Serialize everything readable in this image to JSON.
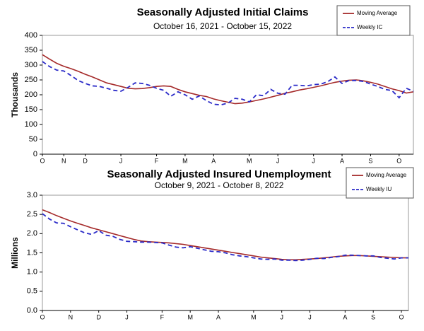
{
  "chart_data": [
    {
      "type": "line",
      "title": "Seasonally Adjusted Initial Claims",
      "subtitle": "October 16, 2021 - October 15, 2022",
      "y_label": "Thousands",
      "categories": [
        "O",
        null,
        null,
        "N",
        null,
        null,
        "D",
        null,
        null,
        null,
        null,
        "J",
        null,
        null,
        null,
        null,
        "F",
        null,
        null,
        null,
        "M",
        null,
        null,
        null,
        "A",
        null,
        null,
        null,
        null,
        "M",
        null,
        null,
        null,
        "J",
        null,
        null,
        null,
        null,
        "J",
        null,
        null,
        null,
        "A",
        null,
        null,
        null,
        "S",
        null,
        null,
        null,
        "O",
        null,
        null
      ],
      "ylim": [
        0,
        400
      ],
      "yticks": [
        0,
        50,
        100,
        150,
        200,
        250,
        300,
        350,
        400
      ],
      "series": [
        {
          "name": "Moving Average",
          "color": "#a52a2a",
          "style": "solid",
          "values": [
            335,
            320,
            306,
            296,
            288,
            279,
            269,
            260,
            250,
            240,
            234,
            228,
            222,
            220,
            221,
            224,
            228,
            230,
            228,
            218,
            210,
            204,
            198,
            194,
            186,
            180,
            175,
            170,
            172,
            176,
            181,
            186,
            192,
            198,
            205,
            210,
            216,
            220,
            225,
            230,
            236,
            242,
            246,
            249,
            250,
            247,
            242,
            236,
            228,
            220,
            214,
            206,
            210
          ]
        },
        {
          "name": "Weekly IC",
          "color": "#2a2ac8",
          "style": "dashed",
          "values": [
            312,
            295,
            283,
            280,
            265,
            248,
            238,
            230,
            228,
            222,
            215,
            212,
            225,
            240,
            238,
            232,
            222,
            215,
            195,
            210,
            200,
            185,
            196,
            180,
            168,
            166,
            172,
            188,
            185,
            176,
            200,
            197,
            218,
            205,
            202,
            232,
            232,
            230,
            234,
            236,
            244,
            260,
            238,
            248,
            248,
            245,
            236,
            228,
            218,
            214,
            190,
            222,
            212
          ]
        }
      ]
    },
    {
      "type": "line",
      "title": "Seasonally Adjusted Insured Unemployment",
      "subtitle": "October 9, 2021 - October 8, 2022",
      "y_label": "Millions",
      "categories": [
        "O",
        null,
        null,
        null,
        "N",
        null,
        null,
        null,
        "D",
        null,
        null,
        null,
        "J",
        null,
        null,
        null,
        null,
        "F",
        null,
        null,
        null,
        "M",
        null,
        null,
        null,
        "A",
        null,
        null,
        null,
        null,
        "M",
        null,
        null,
        null,
        "J",
        null,
        null,
        null,
        "J",
        null,
        null,
        null,
        null,
        "A",
        null,
        null,
        null,
        "S",
        null,
        null,
        null,
        "O",
        null
      ],
      "ylim": [
        0,
        3
      ],
      "yticks": [
        {
          "value": 0,
          "label": "0.0"
        },
        {
          "value": 0.5,
          "label": "0.5"
        },
        {
          "value": 1,
          "label": "1.0"
        },
        {
          "value": 1.5,
          "label": "1.5"
        },
        {
          "value": 2,
          "label": "2.0"
        },
        {
          "value": 2.5,
          "label": "2.5"
        },
        {
          "value": 3,
          "label": "3.0"
        }
      ],
      "series": [
        {
          "name": "Moving Average",
          "color": "#a52a2a",
          "style": "solid",
          "values": [
            2.62,
            2.55,
            2.47,
            2.4,
            2.33,
            2.27,
            2.21,
            2.15,
            2.1,
            2.05,
            2.0,
            1.95,
            1.9,
            1.85,
            1.81,
            1.79,
            1.78,
            1.77,
            1.76,
            1.74,
            1.72,
            1.69,
            1.66,
            1.63,
            1.6,
            1.57,
            1.54,
            1.51,
            1.48,
            1.45,
            1.42,
            1.39,
            1.37,
            1.35,
            1.33,
            1.32,
            1.32,
            1.33,
            1.34,
            1.35,
            1.37,
            1.39,
            1.41,
            1.42,
            1.43,
            1.43,
            1.42,
            1.41,
            1.4,
            1.39,
            1.38,
            1.37,
            1.37
          ]
        },
        {
          "name": "Weekly IU",
          "color": "#2a2ac8",
          "style": "dashed",
          "values": [
            2.52,
            2.38,
            2.28,
            2.27,
            2.18,
            2.1,
            2.02,
            1.98,
            2.08,
            1.96,
            1.93,
            1.85,
            1.8,
            1.79,
            1.78,
            1.78,
            1.77,
            1.76,
            1.7,
            1.65,
            1.63,
            1.66,
            1.62,
            1.58,
            1.54,
            1.53,
            1.5,
            1.45,
            1.42,
            1.4,
            1.37,
            1.34,
            1.33,
            1.34,
            1.31,
            1.31,
            1.3,
            1.31,
            1.33,
            1.36,
            1.35,
            1.38,
            1.4,
            1.44,
            1.44,
            1.43,
            1.42,
            1.42,
            1.38,
            1.36,
            1.34,
            1.37,
            1.37
          ]
        }
      ]
    }
  ]
}
